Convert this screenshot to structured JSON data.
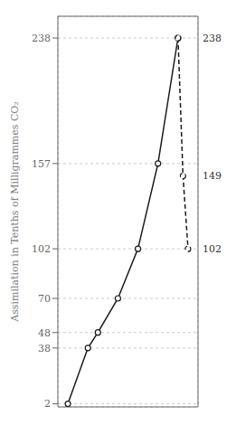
{
  "chart_data": {
    "type": "line",
    "y_label": "Assimilation in Tenths of Milligrammes CO₂",
    "series": [
      {
        "x": [
          1,
          3,
          4,
          6,
          8,
          10,
          12
        ],
        "values": [
          2,
          38,
          48,
          70,
          102,
          157,
          238
        ],
        "color": "#1a1a1a",
        "line_style": "solid",
        "marker": "circle"
      },
      {
        "x": [
          12,
          12.5,
          13
        ],
        "values": [
          238,
          149,
          102
        ],
        "color": "#1a1a1a",
        "line_style": "dashed",
        "marker": "circle"
      }
    ],
    "xlim": [
      0,
      14
    ],
    "xticks": [
      0,
      1,
      2,
      3,
      4,
      5,
      6,
      7,
      8,
      9,
      10,
      11,
      12,
      13,
      14
    ],
    "ylim": [
      0,
      252
    ],
    "yticks": [
      2,
      38,
      48,
      70,
      102,
      157,
      238
    ],
    "grid": true,
    "tick_labels": "y",
    "annotations": [
      {
        "text": "238",
        "y": 238
      },
      {
        "text": "149",
        "y": 149
      },
      {
        "text": "102",
        "y": 102
      }
    ]
  }
}
